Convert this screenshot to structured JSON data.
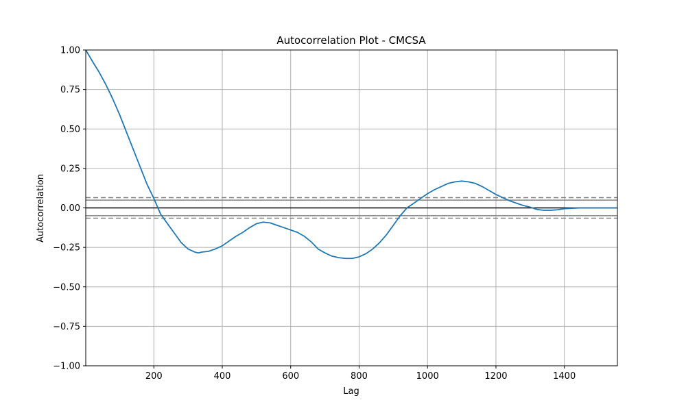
{
  "chart_data": {
    "type": "line",
    "title": "Autocorrelation Plot - CMCSA",
    "xlabel": "Lag",
    "ylabel": "Autocorrelation",
    "xlim": [
      1,
      1555
    ],
    "ylim": [
      -1.0,
      1.0
    ],
    "grid": true,
    "xticks": [
      200,
      400,
      600,
      800,
      1000,
      1200,
      1400
    ],
    "xtick_labels": [
      "200",
      "400",
      "600",
      "800",
      "1000",
      "1200",
      "1400"
    ],
    "yticks": [
      -1.0,
      -0.75,
      -0.5,
      -0.25,
      0.0,
      0.25,
      0.5,
      0.75,
      1.0
    ],
    "ytick_labels": [
      "−1.00",
      "−0.75",
      "−0.50",
      "−0.25",
      "0.00",
      "0.25",
      "0.50",
      "0.75",
      "1.00"
    ],
    "confidence_lines": {
      "solid": [
        0.0495,
        -0.0495
      ],
      "dashed": [
        0.0653,
        -0.0653
      ],
      "zero": 0.0
    },
    "colors": {
      "series": "#1f77b4",
      "grid": "#b0b0b0",
      "confidence": "#808080",
      "zero": "#000000"
    },
    "series": [
      {
        "x": [
          1,
          20,
          40,
          60,
          80,
          100,
          120,
          140,
          160,
          180,
          200,
          220,
          240,
          260,
          280,
          300,
          320,
          330,
          340,
          360,
          380,
          400,
          420,
          440,
          460,
          480,
          500,
          520,
          540,
          560,
          580,
          600,
          620,
          640,
          660,
          680,
          700,
          720,
          740,
          760,
          780,
          800,
          820,
          840,
          860,
          880,
          900,
          920,
          940,
          960,
          980,
          1000,
          1020,
          1040,
          1060,
          1080,
          1100,
          1120,
          1140,
          1160,
          1180,
          1200,
          1220,
          1240,
          1260,
          1280,
          1300,
          1320,
          1340,
          1360,
          1380,
          1400,
          1450,
          1500,
          1555
        ],
        "y": [
          1.0,
          0.93,
          0.86,
          0.78,
          0.69,
          0.59,
          0.48,
          0.37,
          0.26,
          0.15,
          0.06,
          -0.04,
          -0.1,
          -0.16,
          -0.22,
          -0.26,
          -0.28,
          -0.285,
          -0.28,
          -0.275,
          -0.26,
          -0.24,
          -0.21,
          -0.18,
          -0.155,
          -0.125,
          -0.1,
          -0.09,
          -0.095,
          -0.11,
          -0.125,
          -0.14,
          -0.155,
          -0.18,
          -0.215,
          -0.26,
          -0.285,
          -0.305,
          -0.315,
          -0.32,
          -0.32,
          -0.31,
          -0.29,
          -0.26,
          -0.22,
          -0.17,
          -0.11,
          -0.05,
          0.0,
          0.03,
          0.06,
          0.09,
          0.115,
          0.135,
          0.155,
          0.165,
          0.17,
          0.165,
          0.155,
          0.135,
          0.11,
          0.085,
          0.065,
          0.045,
          0.03,
          0.015,
          0.005,
          -0.01,
          -0.015,
          -0.015,
          -0.012,
          -0.005,
          0.0,
          0.0,
          0.0
        ]
      }
    ]
  }
}
